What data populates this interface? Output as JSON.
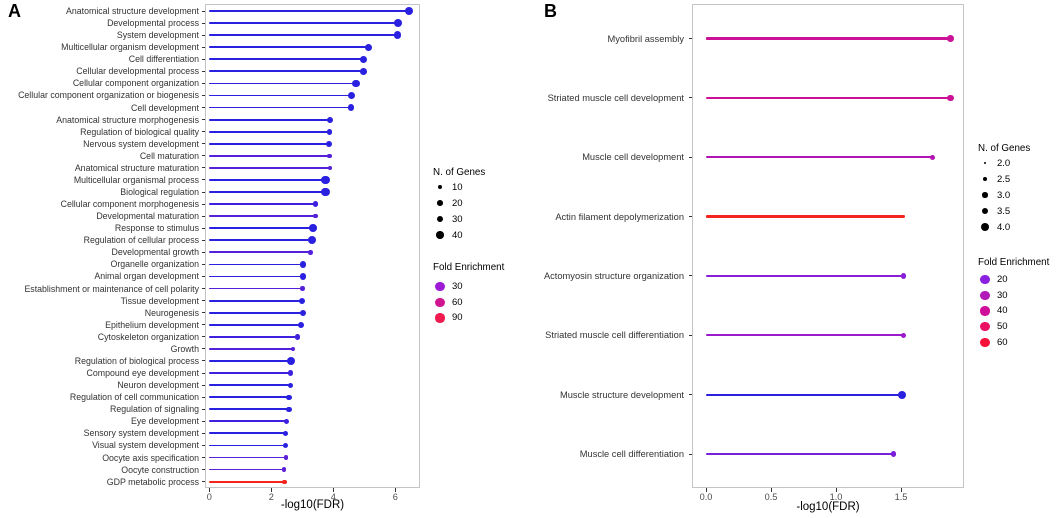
{
  "chart_data": [
    {
      "type": "bar",
      "variant": "lollipop",
      "title": "A",
      "xlabel": "-log10(FDR)",
      "ylabel": "",
      "xlim": [
        -0.14,
        6.79
      ],
      "x_ticks": [
        "0",
        "2",
        "4",
        "6"
      ],
      "x_tick_values": [
        0,
        2,
        4,
        6
      ],
      "grid": false,
      "legend_position": "right",
      "categories": [
        "Anatomical structure development",
        "Developmental process",
        "System development",
        "Multicellular organism development",
        "Cell differentiation",
        "Cellular developmental process",
        "Cellular component organization",
        "Cellular component organization or biogenesis",
        "Cell development",
        "Anatomical structure morphogenesis",
        "Regulation of biological quality",
        "Nervous system development",
        "Cell maturation",
        "Anatomical structure maturation",
        "Multicellular organismal process",
        "Biological regulation",
        "Cellular component morphogenesis",
        "Developmental maturation",
        "Response to stimulus",
        "Regulation of cellular process",
        "Developmental growth",
        "Organelle organization",
        "Animal organ development",
        "Establishment or maintenance of cell polarity",
        "Tissue development",
        "Neurogenesis",
        "Epithelium development",
        "Cytoskeleton organization",
        "Growth",
        "Regulation of biological process",
        "Compound eye development",
        "Neuron development",
        "Regulation of cell communication",
        "Regulation of signaling",
        "Eye development",
        "Sensory system development",
        "Visual system development",
        "Oocyte axis specification",
        "Oocyte construction",
        "GDP metabolic process"
      ],
      "values": [
        6.44,
        6.09,
        6.07,
        5.13,
        4.97,
        4.97,
        4.73,
        4.59,
        4.57,
        3.9,
        3.88,
        3.85,
        3.87,
        3.9,
        3.75,
        3.75,
        3.42,
        3.42,
        3.35,
        3.31,
        3.27,
        3.02,
        3.03,
        3.0,
        3.0,
        3.02,
        2.95,
        2.84,
        2.7,
        2.63,
        2.62,
        2.63,
        2.57,
        2.57,
        2.48,
        2.46,
        2.46,
        2.48,
        2.41,
        2.43
      ],
      "genes": [
        50,
        45,
        40,
        38,
        32,
        32,
        36,
        36,
        32,
        24,
        22,
        22,
        9,
        9,
        48,
        48,
        16,
        9,
        40,
        44,
        11,
        28,
        28,
        10,
        24,
        24,
        22,
        20,
        10,
        46,
        16,
        16,
        17,
        17,
        16,
        16,
        16,
        8,
        9,
        7
      ],
      "colors": [
        "#2a21e0",
        "#2a21e0",
        "#2a21e0",
        "#2a21e0",
        "#2a21e0",
        "#2a21e0",
        "#2a21e0",
        "#2a21e0",
        "#2a21e0",
        "#2a21e0",
        "#2a21e0",
        "#2a21e0",
        "#5520da",
        "#5520da",
        "#2a21e0",
        "#2a21e0",
        "#3d21de",
        "#5520da",
        "#2a21e0",
        "#2a21e0",
        "#5520da",
        "#2a21e0",
        "#2a21e0",
        "#5520da",
        "#2a21e0",
        "#2a21e0",
        "#2a21e0",
        "#3d21de",
        "#5520da",
        "#2a21e0",
        "#3d21de",
        "#2a21e0",
        "#2a21e0",
        "#2a21e0",
        "#3d21de",
        "#2a21e0",
        "#2a21e0",
        "#5c20d8",
        "#5c20d8",
        "#f2241c"
      ],
      "legend": {
        "size_title": "N. of Genes",
        "sizes": [
          {
            "label": "10",
            "genes": 10
          },
          {
            "label": "20",
            "genes": 20
          },
          {
            "label": "30",
            "genes": 30
          },
          {
            "label": "40",
            "genes": 40
          }
        ],
        "color_title": "Fold Enrichment",
        "colors": [
          {
            "label": "30",
            "color": "#9e1bd6"
          },
          {
            "label": "60",
            "color": "#cf1691"
          },
          {
            "label": "90",
            "color": "#ef1a50"
          }
        ]
      }
    },
    {
      "type": "bar",
      "variant": "lollipop",
      "title": "B",
      "xlabel": "-log10(FDR)",
      "ylabel": "",
      "xlim": [
        -0.11,
        1.98
      ],
      "x_ticks": [
        "0.0",
        "0.5",
        "1.0",
        "1.5"
      ],
      "x_tick_values": [
        0,
        0.5,
        1.0,
        1.5
      ],
      "grid": false,
      "legend_position": "right",
      "categories": [
        "Myofibril assembly",
        "Striated muscle cell development",
        "Muscle cell development",
        "Actin filament depolymerization",
        "Actomyosin structure organization",
        "Striated muscle cell differentiation",
        "Muscle structure development",
        "Muscle cell differentiation"
      ],
      "values": [
        1.88,
        1.88,
        1.74,
        1.52,
        1.52,
        1.52,
        1.51,
        1.44
      ],
      "genes": [
        3.5,
        3.5,
        3.0,
        2.0,
        3.0,
        3.0,
        4.0,
        3.0
      ],
      "colors": [
        "#cc1199",
        "#cc1199",
        "#b313b0",
        "#f42420",
        "#8b1fd8",
        "#9a1bcb",
        "#2a21e0",
        "#7a1fd9"
      ],
      "legend": {
        "size_title": "N. of Genes",
        "sizes": [
          {
            "label": "2.0",
            "genes": 2.0
          },
          {
            "label": "2.5",
            "genes": 2.5
          },
          {
            "label": "3.0",
            "genes": 3.0
          },
          {
            "label": "3.5",
            "genes": 3.5
          },
          {
            "label": "4.0",
            "genes": 4.0
          }
        ],
        "color_title": "Fold Enrichment",
        "colors": [
          {
            "label": "20",
            "color": "#8a20e0"
          },
          {
            "label": "30",
            "color": "#b118b8"
          },
          {
            "label": "40",
            "color": "#cf0f99"
          },
          {
            "label": "50",
            "color": "#ea0f62"
          },
          {
            "label": "60",
            "color": "#f8123a"
          }
        ]
      }
    }
  ]
}
